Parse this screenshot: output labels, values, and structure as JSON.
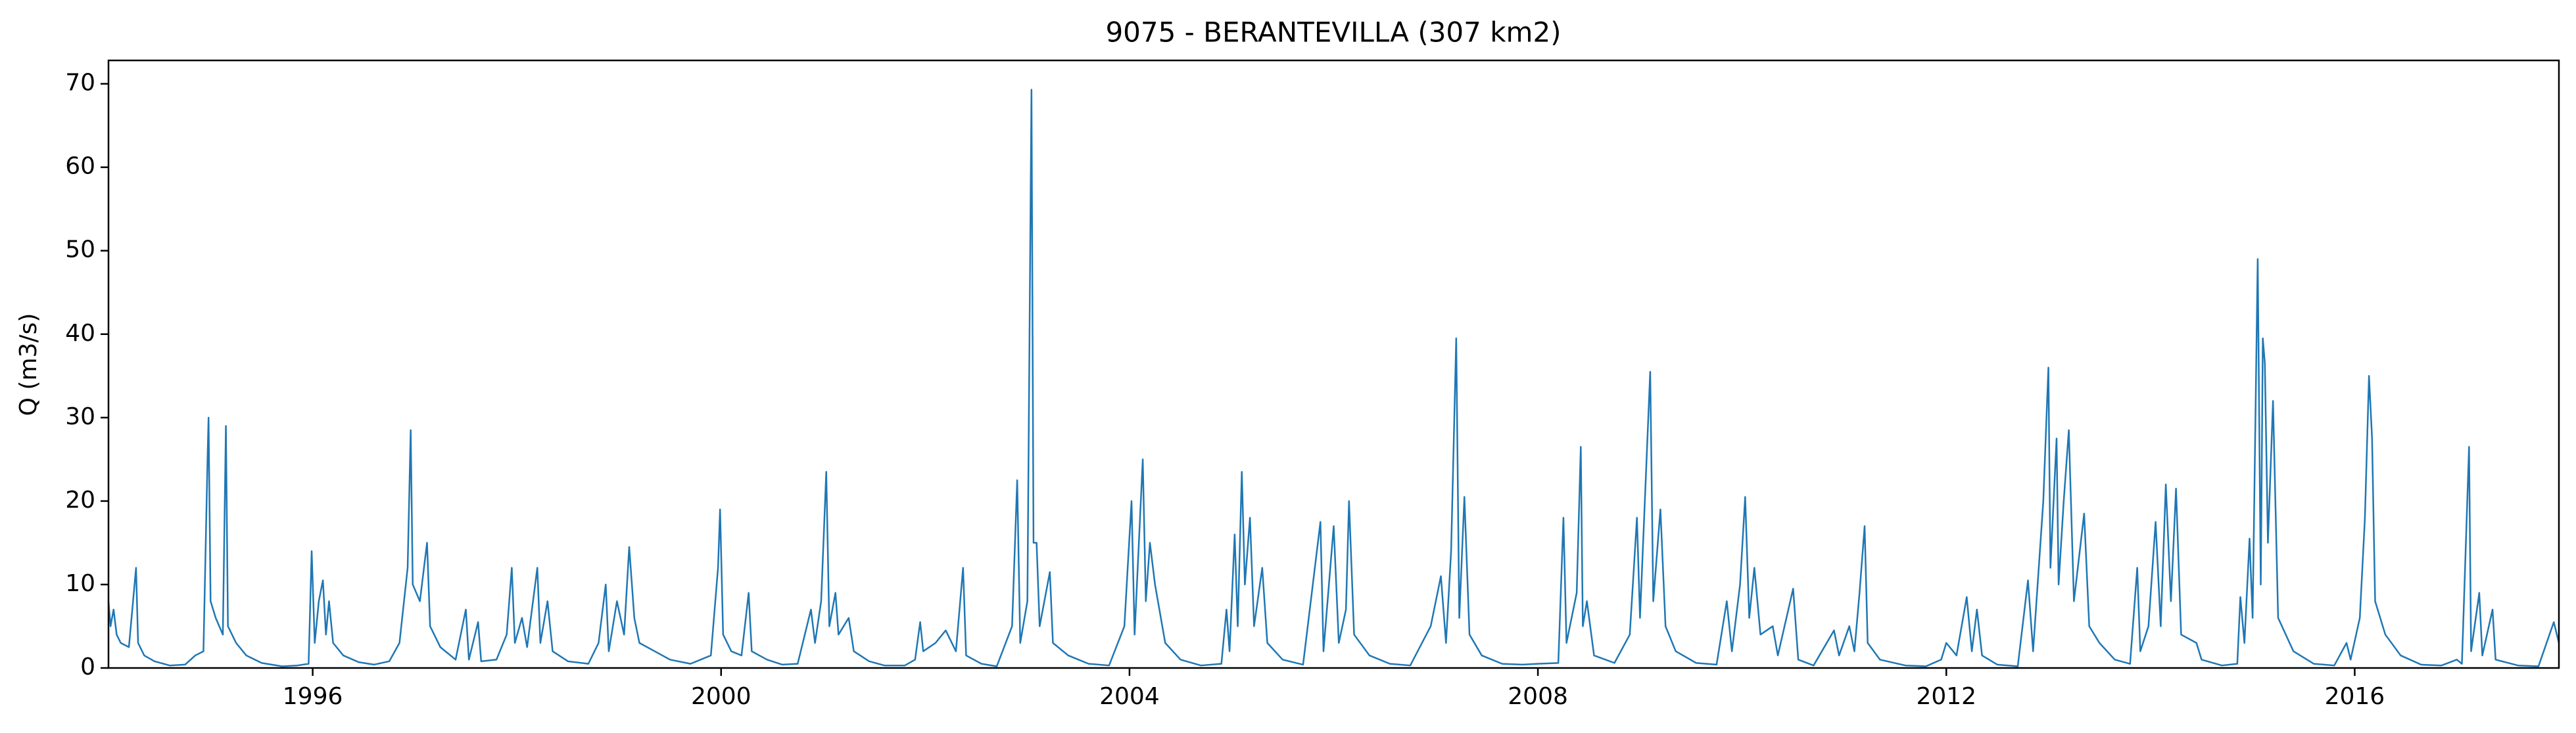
{
  "chart_data": {
    "type": "line",
    "title": "9075 - BERANTEVILLA (307 km2)",
    "y_label": "Q (m3/s)",
    "xlim": [
      1994.0,
      2018.0
    ],
    "xticks": [
      1996,
      2000,
      2004,
      2008,
      2012,
      2016
    ],
    "ylim": [
      0,
      72.8
    ],
    "yticks": [
      0,
      10,
      20,
      30,
      40,
      50,
      60,
      70
    ],
    "grid": false,
    "series": [
      {
        "color": "#1f77b4",
        "x": [
          1994.0,
          1994.02,
          1994.05,
          1994.08,
          1994.12,
          1994.2,
          1994.27,
          1994.29,
          1994.35,
          1994.45,
          1994.6,
          1994.75,
          1994.85,
          1994.93,
          1994.97,
          1994.98,
          1995.0,
          1995.05,
          1995.12,
          1995.15,
          1995.17,
          1995.25,
          1995.35,
          1995.5,
          1995.7,
          1995.85,
          1995.96,
          1995.99,
          1996.02,
          1996.06,
          1996.1,
          1996.13,
          1996.16,
          1996.2,
          1996.3,
          1996.45,
          1996.6,
          1996.75,
          1996.85,
          1996.93,
          1996.96,
          1996.98,
          1997.05,
          1997.12,
          1997.15,
          1997.25,
          1997.4,
          1997.5,
          1997.53,
          1997.62,
          1997.65,
          1997.8,
          1997.9,
          1997.95,
          1997.98,
          1998.05,
          1998.1,
          1998.2,
          1998.23,
          1998.3,
          1998.35,
          1998.5,
          1998.7,
          1998.8,
          1998.87,
          1998.9,
          1998.98,
          1999.05,
          1999.1,
          1999.15,
          1999.2,
          1999.35,
          1999.5,
          1999.7,
          1999.9,
          1999.97,
          1999.99,
          2000.02,
          2000.1,
          2000.2,
          2000.27,
          2000.3,
          2000.45,
          2000.6,
          2000.75,
          2000.88,
          2000.92,
          2000.98,
          2001.03,
          2001.06,
          2001.12,
          2001.15,
          2001.25,
          2001.3,
          2001.45,
          2001.6,
          2001.8,
          2001.9,
          2001.95,
          2001.98,
          2002.1,
          2002.2,
          2002.3,
          2002.37,
          2002.4,
          2002.55,
          2002.7,
          2002.85,
          2002.9,
          2002.93,
          2003.0,
          2003.04,
          2003.06,
          2003.09,
          2003.12,
          2003.22,
          2003.25,
          2003.4,
          2003.6,
          2003.8,
          2003.95,
          2003.98,
          2004.02,
          2004.05,
          2004.13,
          2004.16,
          2004.2,
          2004.25,
          2004.35,
          2004.5,
          2004.7,
          2004.9,
          2004.95,
          2004.98,
          2005.03,
          2005.06,
          2005.1,
          2005.13,
          2005.18,
          2005.22,
          2005.3,
          2005.35,
          2005.5,
          2005.7,
          2005.87,
          2005.9,
          2006.0,
          2006.05,
          2006.12,
          2006.15,
          2006.2,
          2006.35,
          2006.55,
          2006.75,
          2006.95,
          2007.05,
          2007.1,
          2007.15,
          2007.2,
          2007.23,
          2007.28,
          2007.33,
          2007.45,
          2007.65,
          2007.85,
          2008.0,
          2008.2,
          2008.25,
          2008.28,
          2008.38,
          2008.42,
          2008.44,
          2008.48,
          2008.55,
          2008.75,
          2008.9,
          2008.97,
          2009.0,
          2009.1,
          2009.13,
          2009.2,
          2009.25,
          2009.35,
          2009.55,
          2009.75,
          2009.85,
          2009.9,
          2009.98,
          2010.03,
          2010.07,
          2010.12,
          2010.18,
          2010.3,
          2010.35,
          2010.5,
          2010.55,
          2010.7,
          2010.9,
          2010.95,
          2011.05,
          2011.1,
          2011.15,
          2011.2,
          2011.23,
          2011.35,
          2011.6,
          2011.8,
          2011.95,
          2012.0,
          2012.1,
          2012.2,
          2012.25,
          2012.3,
          2012.35,
          2012.5,
          2012.7,
          2012.8,
          2012.85,
          2012.95,
          2013.0,
          2013.02,
          2013.08,
          2013.1,
          2013.15,
          2013.2,
          2013.25,
          2013.35,
          2013.4,
          2013.5,
          2013.65,
          2013.8,
          2013.87,
          2013.9,
          2013.98,
          2014.05,
          2014.1,
          2014.15,
          2014.2,
          2014.25,
          2014.3,
          2014.45,
          2014.5,
          2014.7,
          2014.85,
          2014.88,
          2014.92,
          2014.97,
          2015.0,
          2015.05,
          2015.08,
          2015.1,
          2015.12,
          2015.15,
          2015.2,
          2015.25,
          2015.4,
          2015.6,
          2015.8,
          2015.92,
          2015.96,
          2016.05,
          2016.1,
          2016.14,
          2016.17,
          2016.2,
          2016.3,
          2016.45,
          2016.65,
          2016.85,
          2017.0,
          2017.05,
          2017.12,
          2017.14,
          2017.22,
          2017.25,
          2017.35,
          2017.38,
          2017.6,
          2017.8,
          2017.95,
          2018.0
        ],
        "values": [
          8,
          5,
          7,
          4,
          3,
          2.5,
          12,
          3,
          1.5,
          0.8,
          0.3,
          0.4,
          1.5,
          2,
          25,
          30,
          8,
          6,
          4,
          29,
          5,
          3,
          1.5,
          0.6,
          0.2,
          0.3,
          0.5,
          14,
          3,
          8,
          10.5,
          4,
          8,
          3,
          1.5,
          0.7,
          0.4,
          0.8,
          3,
          12,
          28.5,
          10,
          8,
          15,
          5,
          2.5,
          1,
          7,
          1,
          5.5,
          0.8,
          1,
          4,
          12,
          3,
          6,
          2.5,
          12,
          3,
          8,
          2,
          0.8,
          0.5,
          3,
          10,
          2,
          8,
          4,
          14.5,
          6,
          3,
          2,
          1,
          0.5,
          1.5,
          12,
          19,
          4,
          2,
          1.5,
          9,
          2,
          1,
          0.4,
          0.5,
          7,
          3,
          8,
          23.5,
          5,
          9,
          4,
          6,
          2,
          0.8,
          0.3,
          0.3,
          1,
          5.5,
          2,
          3,
          4.5,
          2,
          12,
          1.5,
          0.5,
          0.2,
          5,
          22.5,
          3,
          8,
          69.3,
          15,
          15,
          5,
          11.5,
          3,
          1.5,
          0.5,
          0.3,
          5,
          11.5,
          20,
          4,
          25,
          8,
          15,
          10,
          3,
          1,
          0.3,
          0.5,
          7,
          2,
          16,
          5,
          23.5,
          10,
          18,
          5,
          12,
          3,
          1,
          0.4,
          17.5,
          2,
          17,
          3,
          7,
          20,
          4,
          1.5,
          0.5,
          0.3,
          5,
          11,
          3,
          14,
          39.5,
          6,
          20.5,
          4,
          1.5,
          0.5,
          0.4,
          0.5,
          0.6,
          18,
          3,
          9,
          26.5,
          5,
          8,
          1.5,
          0.6,
          4,
          18,
          6,
          35.5,
          8,
          19,
          5,
          2,
          0.6,
          0.4,
          8,
          2,
          10,
          20.5,
          6,
          12,
          4,
          5,
          1.5,
          9.5,
          1,
          0.3,
          4.5,
          1.5,
          5,
          2,
          9,
          17,
          3,
          1,
          0.3,
          0.2,
          1,
          3,
          1.5,
          8.5,
          2,
          7,
          1.5,
          0.4,
          0.2,
          10.5,
          2,
          20,
          36,
          12,
          27.5,
          10,
          20,
          28.5,
          8,
          18.5,
          5,
          3,
          1,
          0.5,
          12,
          2,
          5,
          17.5,
          5,
          22,
          8,
          21.5,
          4,
          3,
          1,
          0.3,
          0.5,
          8.5,
          3,
          15.5,
          6,
          49,
          10,
          39.5,
          36.5,
          15,
          32,
          6,
          2,
          0.5,
          0.3,
          3,
          1,
          6,
          18,
          35,
          27.5,
          8,
          4,
          1.5,
          0.4,
          0.3,
          1,
          0.5,
          26.5,
          2,
          9,
          1.5,
          7,
          1,
          0.3,
          0.2,
          5.5,
          3
        ]
      }
    ]
  }
}
